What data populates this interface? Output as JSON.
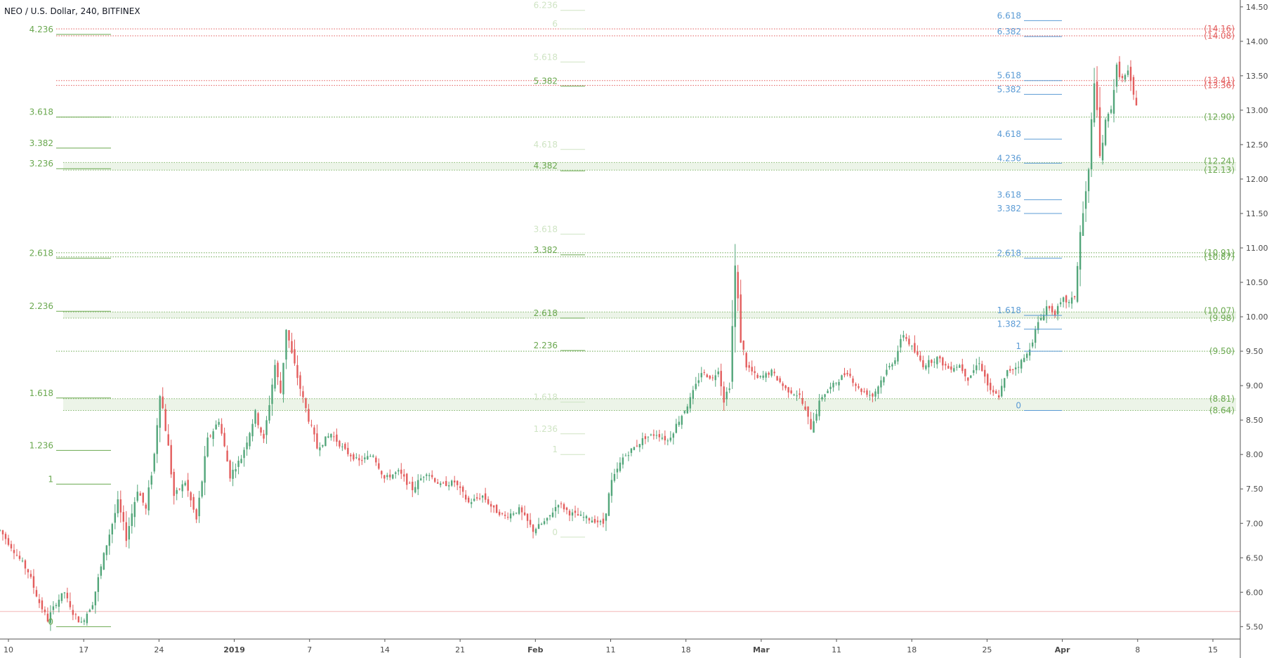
{
  "header": {
    "title": "NEO / U.S. Dollar, 240, BITFINEX"
  },
  "chart_data": {
    "type": "candlestick",
    "y_axis": {
      "ticks": [
        "5.50",
        "6.00",
        "6.50",
        "7.00",
        "7.50",
        "8.00",
        "8.50",
        "9.00",
        "9.50",
        "10.00",
        "10.50",
        "11.00",
        "11.50",
        "12.00",
        "12.50",
        "13.00",
        "13.50",
        "14.00",
        "14.50"
      ],
      "range": [
        5.32,
        14.6
      ]
    },
    "x_axis": {
      "ticks": [
        "10",
        "17",
        "24",
        "2019",
        "7",
        "14",
        "21",
        "Feb",
        "11",
        "18",
        "Mar",
        "11",
        "18",
        "25",
        "Apr",
        "8",
        "15"
      ],
      "bold_ticks": [
        "2019",
        "Feb",
        "Mar",
        "Apr"
      ]
    },
    "colors": {
      "up": "#53a67a",
      "down": "#e35d5d",
      "fib_left": "#6aa84f",
      "fib_mid": "#6aa84f",
      "fib_mid_faded": "#cfe4c4",
      "fib_right": "#5b9bd5",
      "red_level": "#e35d5d",
      "green_level": "#6aa84f"
    },
    "price_path": [
      [
        0,
        6.9
      ],
      [
        5,
        6.6
      ],
      [
        10,
        6.3
      ],
      [
        14,
        5.85
      ],
      [
        17,
        5.6
      ],
      [
        20,
        5.85
      ],
      [
        23,
        6.0
      ],
      [
        25,
        5.75
      ],
      [
        29,
        5.55
      ],
      [
        33,
        5.85
      ],
      [
        38,
        6.7
      ],
      [
        42,
        7.3
      ],
      [
        45,
        6.8
      ],
      [
        49,
        7.5
      ],
      [
        52,
        7.2
      ],
      [
        55,
        8.0
      ],
      [
        57,
        8.95
      ],
      [
        60,
        8.1
      ],
      [
        62,
        7.4
      ],
      [
        66,
        7.6
      ],
      [
        70,
        7.05
      ],
      [
        74,
        8.2
      ],
      [
        78,
        8.5
      ],
      [
        82,
        7.7
      ],
      [
        86,
        7.95
      ],
      [
        91,
        8.6
      ],
      [
        94,
        8.2
      ],
      [
        98,
        9.3
      ],
      [
        100,
        8.9
      ],
      [
        102,
        9.85
      ],
      [
        104,
        9.45
      ],
      [
        108,
        8.8
      ],
      [
        113,
        8.1
      ],
      [
        118,
        8.3
      ],
      [
        123,
        8.05
      ],
      [
        128,
        7.9
      ],
      [
        133,
        8.0
      ],
      [
        137,
        7.65
      ],
      [
        142,
        7.75
      ],
      [
        147,
        7.5
      ],
      [
        152,
        7.75
      ],
      [
        157,
        7.55
      ],
      [
        162,
        7.6
      ],
      [
        167,
        7.3
      ],
      [
        172,
        7.4
      ],
      [
        176,
        7.2
      ],
      [
        180,
        7.1
      ],
      [
        185,
        7.2
      ],
      [
        190,
        6.9
      ],
      [
        195,
        7.05
      ],
      [
        199,
        7.3
      ],
      [
        203,
        7.15
      ],
      [
        207,
        7.1
      ],
      [
        211,
        7.05
      ],
      [
        215,
        7.0
      ],
      [
        218,
        7.6
      ],
      [
        222,
        7.95
      ],
      [
        226,
        8.1
      ],
      [
        230,
        8.25
      ],
      [
        234,
        8.3
      ],
      [
        238,
        8.2
      ],
      [
        242,
        8.5
      ],
      [
        246,
        8.8
      ],
      [
        250,
        9.2
      ],
      [
        254,
        9.1
      ],
      [
        256,
        9.25
      ],
      [
        258,
        8.8
      ],
      [
        260,
        9.0
      ],
      [
        262,
        10.7
      ],
      [
        264,
        9.7
      ],
      [
        266,
        9.3
      ],
      [
        270,
        9.1
      ],
      [
        275,
        9.2
      ],
      [
        280,
        8.95
      ],
      [
        285,
        8.85
      ],
      [
        289,
        8.4
      ],
      [
        293,
        8.85
      ],
      [
        298,
        9.05
      ],
      [
        302,
        9.2
      ],
      [
        306,
        8.95
      ],
      [
        311,
        8.85
      ],
      [
        315,
        9.15
      ],
      [
        319,
        9.4
      ],
      [
        322,
        9.75
      ],
      [
        325,
        9.55
      ],
      [
        329,
        9.3
      ],
      [
        334,
        9.4
      ],
      [
        338,
        9.25
      ],
      [
        342,
        9.3
      ],
      [
        345,
        9.1
      ],
      [
        349,
        9.35
      ],
      [
        353,
        8.9
      ],
      [
        356,
        8.85
      ],
      [
        359,
        9.2
      ],
      [
        363,
        9.3
      ],
      [
        366,
        9.45
      ],
      [
        370,
        9.9
      ],
      [
        373,
        10.15
      ],
      [
        376,
        10.05
      ],
      [
        379,
        10.25
      ],
      [
        381,
        10.2
      ],
      [
        383,
        10.3
      ],
      [
        385,
        11.2
      ],
      [
        388,
        12.1
      ],
      [
        390,
        13.5
      ],
      [
        392,
        12.3
      ],
      [
        394,
        12.8
      ],
      [
        396,
        13.05
      ],
      [
        398,
        13.6
      ],
      [
        400,
        13.45
      ],
      [
        402,
        13.55
      ],
      [
        404,
        13.2
      ],
      [
        405,
        13.1
      ]
    ],
    "fib_left": {
      "labels": [
        "4.236",
        "3.618",
        "3.382",
        "3.236",
        "2.618",
        "2.236",
        "1.618",
        "1.236",
        "1",
        "0"
      ],
      "levels": [
        14.1,
        12.9,
        12.45,
        12.15,
        10.85,
        10.08,
        8.82,
        8.06,
        7.57,
        5.5
      ]
    },
    "fib_mid": {
      "labels": [
        "6.236",
        "6",
        "5.618",
        "5.382",
        "4.618",
        "4.382",
        "3.618",
        "3.382",
        "2.618",
        "2.236",
        "1.618",
        "1.236",
        "1",
        "0"
      ],
      "levels": [
        14.45,
        14.18,
        13.7,
        13.35,
        12.43,
        12.12,
        11.2,
        10.9,
        9.98,
        9.51,
        8.76,
        8.3,
        8.0,
        6.8
      ],
      "faded": [
        "6.236",
        "6",
        "5.618",
        "4.618",
        "3.618",
        "1.618",
        "1.236",
        "1",
        "0"
      ]
    },
    "fib_right": {
      "labels": [
        "6.618",
        "6.382",
        "5.618",
        "5.382",
        "4.618",
        "4.236",
        "3.618",
        "3.382",
        "2.618",
        "1.618",
        "1.382",
        "1",
        "0"
      ],
      "levels": [
        14.3,
        14.07,
        13.43,
        13.23,
        12.58,
        12.23,
        11.7,
        11.5,
        10.85,
        10.02,
        9.82,
        9.5,
        8.64
      ]
    },
    "price_labels": [
      "(14.16)",
      "(14.08)",
      "(13.41)",
      "(13.36)",
      "(12.90)",
      "(12.24)",
      "(12.13)",
      "(10.91)",
      "(10.87)",
      "(10.07)",
      "(9.98)",
      "(9.50)",
      "(8.81)",
      "(8.64)"
    ],
    "price_label_values": [
      14.18,
      14.08,
      13.43,
      13.36,
      12.9,
      12.26,
      12.13,
      10.93,
      10.87,
      10.09,
      9.98,
      9.5,
      8.81,
      8.64
    ],
    "price_label_colors": [
      "red",
      "red",
      "red",
      "red",
      "green",
      "green",
      "green",
      "green",
      "green",
      "green",
      "green",
      "green",
      "green",
      "green"
    ],
    "bands": [
      [
        12.13,
        12.24
      ],
      [
        9.98,
        10.07
      ],
      [
        8.64,
        8.81
      ]
    ],
    "horizontal_line": 5.72
  }
}
